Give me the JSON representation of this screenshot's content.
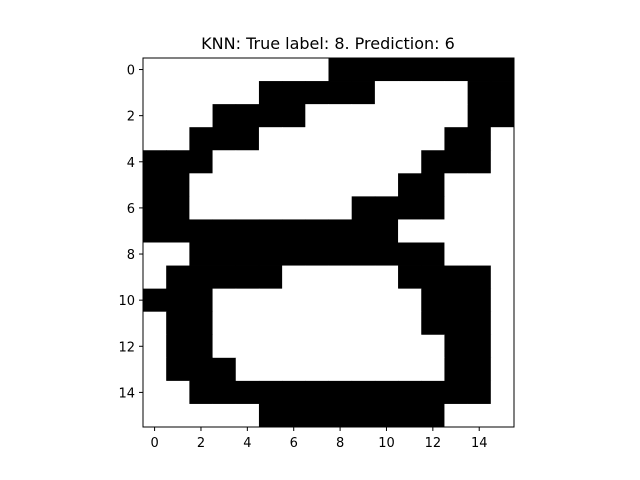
{
  "chart_data": {
    "type": "heatmap",
    "title": "KNN: True label: 8. Prediction: 6",
    "xlabel": "",
    "ylabel": "",
    "colormap": "gray_r",
    "colors": {
      "on": "#000000",
      "off": "#ffffff"
    },
    "xlim": [
      -0.5,
      15.5
    ],
    "ylim": [
      15.5,
      -0.5
    ],
    "xticks": [
      0,
      2,
      4,
      6,
      8,
      10,
      12,
      14
    ],
    "yticks": [
      0,
      2,
      4,
      6,
      8,
      10,
      12,
      14
    ],
    "grid": false,
    "matrix": [
      [
        0,
        0,
        0,
        0,
        0,
        0,
        0,
        0,
        1,
        1,
        1,
        1,
        1,
        1,
        1,
        1
      ],
      [
        0,
        0,
        0,
        0,
        0,
        1,
        1,
        1,
        1,
        1,
        0,
        0,
        0,
        0,
        1,
        1
      ],
      [
        0,
        0,
        0,
        1,
        1,
        1,
        1,
        0,
        0,
        0,
        0,
        0,
        0,
        0,
        1,
        1
      ],
      [
        0,
        0,
        1,
        1,
        1,
        0,
        0,
        0,
        0,
        0,
        0,
        0,
        0,
        1,
        1,
        0
      ],
      [
        1,
        1,
        1,
        0,
        0,
        0,
        0,
        0,
        0,
        0,
        0,
        0,
        1,
        1,
        1,
        0
      ],
      [
        1,
        1,
        0,
        0,
        0,
        0,
        0,
        0,
        0,
        0,
        0,
        1,
        1,
        0,
        0,
        0
      ],
      [
        1,
        1,
        0,
        0,
        0,
        0,
        0,
        0,
        0,
        1,
        1,
        1,
        1,
        0,
        0,
        0
      ],
      [
        1,
        1,
        1,
        1,
        1,
        1,
        1,
        1,
        1,
        1,
        1,
        0,
        0,
        0,
        0,
        0
      ],
      [
        0,
        0,
        1,
        1,
        1,
        1,
        1,
        1,
        1,
        1,
        1,
        1,
        1,
        0,
        0,
        0
      ],
      [
        0,
        1,
        1,
        1,
        1,
        1,
        0,
        0,
        0,
        0,
        0,
        1,
        1,
        1,
        1,
        0
      ],
      [
        1,
        1,
        1,
        0,
        0,
        0,
        0,
        0,
        0,
        0,
        0,
        0,
        1,
        1,
        1,
        0
      ],
      [
        0,
        1,
        1,
        0,
        0,
        0,
        0,
        0,
        0,
        0,
        0,
        0,
        1,
        1,
        1,
        0
      ],
      [
        0,
        1,
        1,
        0,
        0,
        0,
        0,
        0,
        0,
        0,
        0,
        0,
        0,
        1,
        1,
        0
      ],
      [
        0,
        1,
        1,
        1,
        0,
        0,
        0,
        0,
        0,
        0,
        0,
        0,
        0,
        1,
        1,
        0
      ],
      [
        0,
        0,
        1,
        1,
        1,
        1,
        1,
        1,
        1,
        1,
        1,
        1,
        1,
        1,
        1,
        0
      ],
      [
        0,
        0,
        0,
        0,
        0,
        1,
        1,
        1,
        1,
        1,
        1,
        1,
        1,
        0,
        0,
        0
      ]
    ]
  }
}
